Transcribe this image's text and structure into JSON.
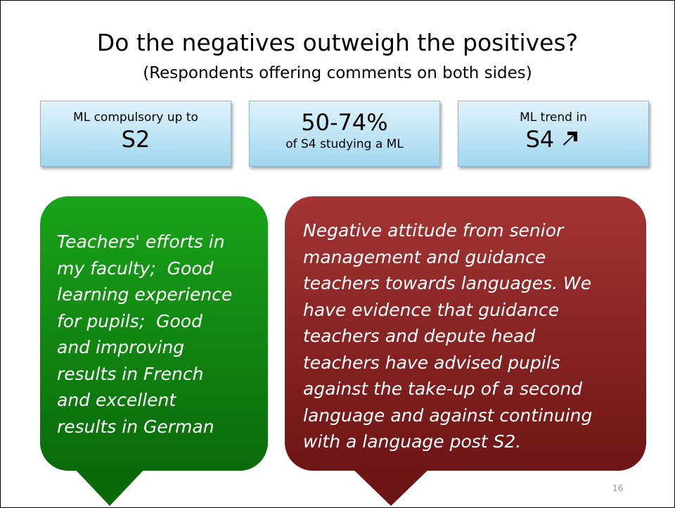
{
  "header": {
    "title": "Do the negatives outweigh the positives?",
    "subtitle": "(Respondents offering comments on both sides)"
  },
  "stats": [
    {
      "top": "ML compulsory up to",
      "bottom": "S2"
    },
    {
      "top": "50-74%",
      "bottom": "of S4 studying a ML"
    },
    {
      "top": "ML trend in",
      "bottom": "S4"
    }
  ],
  "positive": {
    "lines": [
      "Teachers' efforts in",
      "my faculty;  Good",
      "learning experience",
      "for pupils;  Good",
      "and improving",
      "results in French",
      "and excellent",
      "results in German"
    ]
  },
  "negative": {
    "lines": [
      "Negative attitude from senior",
      "management and guidance",
      "teachers towards languages. We",
      "have evidence that guidance",
      "teachers and depute head",
      "teachers have advised pupils",
      "against the take-up of a second",
      "language and against continuing",
      "with a language post S2."
    ]
  },
  "page_number": "16"
}
